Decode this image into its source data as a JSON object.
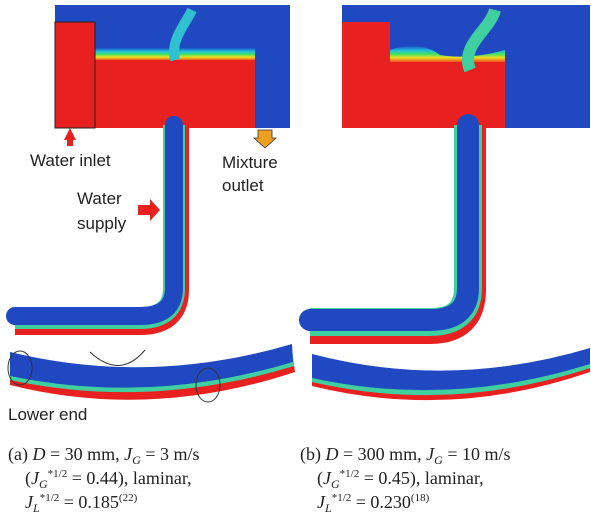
{
  "labels": {
    "water_inlet": "Water inlet",
    "mixture_outlet": [
      "Mixture",
      "outlet"
    ],
    "water_supply": [
      "Water",
      "supply"
    ],
    "lower_end": "Lower end"
  },
  "captions": [
    {
      "lines": [
        [
          {
            "text": "(a) ",
            "style": "n"
          },
          {
            "text": "D",
            "style": "i"
          },
          {
            "text": " = 30 mm, ",
            "style": "n"
          },
          {
            "text": "J",
            "style": "i"
          },
          {
            "text": "G",
            "style": "sub"
          },
          {
            "text": " = 3 m/s",
            "style": "n"
          }
        ],
        [
          {
            "text": "(",
            "style": "n"
          },
          {
            "text": "J",
            "style": "i"
          },
          {
            "text": "G",
            "style": "sub"
          },
          {
            "text": "*1/2",
            "style": "sup"
          },
          {
            "text": " = 0.44), laminar,",
            "style": "n"
          }
        ],
        [
          {
            "text": "J",
            "style": "i"
          },
          {
            "text": "L",
            "style": "sub"
          },
          {
            "text": "*1/2",
            "style": "sup"
          },
          {
            "text": " = 0.185",
            "style": "n"
          },
          {
            "text": "(22)",
            "style": "sup"
          }
        ]
      ]
    },
    {
      "lines": [
        [
          {
            "text": "(b) ",
            "style": "n"
          },
          {
            "text": "D",
            "style": "i"
          },
          {
            "text": " = 300 mm, ",
            "style": "n"
          },
          {
            "text": "J",
            "style": "i"
          },
          {
            "text": "G",
            "style": "sub"
          },
          {
            "text": " = 10 m/s",
            "style": "n"
          }
        ],
        [
          {
            "text": "(",
            "style": "n"
          },
          {
            "text": "J",
            "style": "i"
          },
          {
            "text": "G",
            "style": "sub"
          },
          {
            "text": "*1/2",
            "style": "sup"
          },
          {
            "text": " = 0.45), laminar,",
            "style": "n"
          }
        ],
        [
          {
            "text": "J",
            "style": "i"
          },
          {
            "text": "L",
            "style": "sub"
          },
          {
            "text": "*1/2",
            "style": "sup"
          },
          {
            "text": " = 0.230",
            "style": "n"
          },
          {
            "text": "(18)",
            "style": "sup"
          }
        ]
      ]
    }
  ]
}
